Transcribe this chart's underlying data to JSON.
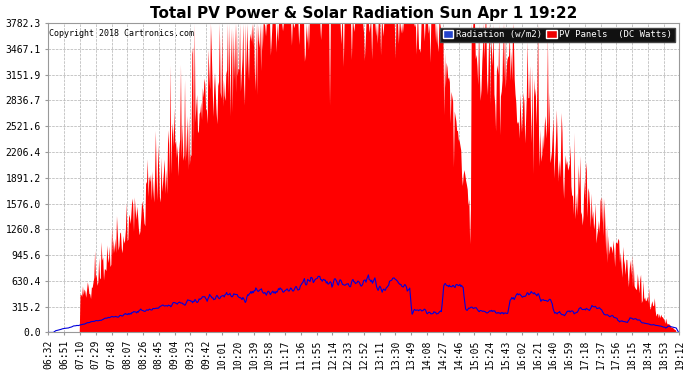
{
  "title": "Total PV Power & Solar Radiation Sun Apr 1 19:22",
  "copyright": "Copyright 2018 Cartronics.com",
  "legend_radiation": "Radiation (w/m2)",
  "legend_pv": "PV Panels  (DC Watts)",
  "yticks": [
    0.0,
    315.2,
    630.4,
    945.6,
    1260.8,
    1576.0,
    1891.2,
    2206.4,
    2521.6,
    2836.7,
    3151.9,
    3467.1,
    3782.3
  ],
  "ymax": 3782.3,
  "x_labels": [
    "06:32",
    "06:51",
    "07:10",
    "07:29",
    "07:48",
    "08:07",
    "08:26",
    "08:45",
    "09:04",
    "09:23",
    "09:42",
    "10:01",
    "10:20",
    "10:39",
    "10:58",
    "11:17",
    "11:36",
    "11:55",
    "12:14",
    "12:33",
    "12:52",
    "13:11",
    "13:30",
    "13:49",
    "14:08",
    "14:27",
    "14:46",
    "15:05",
    "15:24",
    "15:43",
    "16:02",
    "16:21",
    "16:40",
    "16:59",
    "17:18",
    "17:37",
    "17:56",
    "18:15",
    "18:34",
    "18:53",
    "19:12"
  ],
  "background_color": "#ffffff",
  "plot_bg_color": "#ffffff",
  "grid_color": "#b0b0b0",
  "fill_color": "#ff0000",
  "line_color": "#0000dd",
  "title_fontsize": 11,
  "tick_fontsize": 7,
  "copyright_fontsize": 6
}
